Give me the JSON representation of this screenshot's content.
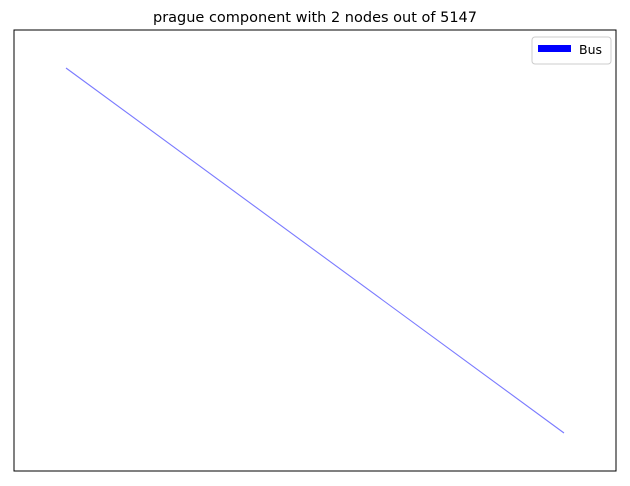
{
  "title": "prague component with 2 nodes out of 5147",
  "legend": {
    "entries": [
      {
        "label": "Bus",
        "color": "#0000ff"
      }
    ]
  },
  "graph": {
    "edges": [
      {
        "mode": "Bus",
        "color": "#7a7aff",
        "from": 0,
        "to": 1
      }
    ]
  }
}
